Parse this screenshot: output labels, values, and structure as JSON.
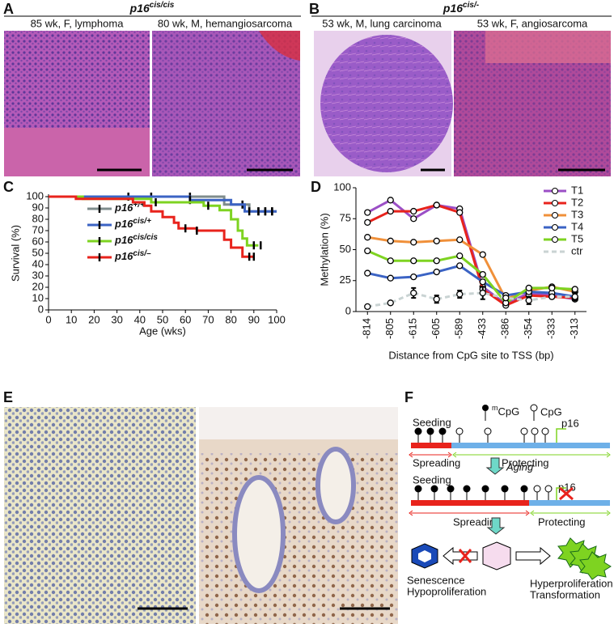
{
  "panels": {
    "A": {
      "label": "A",
      "title": {
        "text": "p16",
        "sup": "cis/cis"
      },
      "images": [
        "85 wk, F, lymphoma",
        "80 wk, M, hemangiosarcoma"
      ]
    },
    "B": {
      "label": "B",
      "title": {
        "text": "p16",
        "sup": "cis/-"
      },
      "images": [
        "53 wk, M, lung carcinoma",
        "53 wk, F, angiosarcoma"
      ]
    },
    "C": {
      "label": "C"
    },
    "D": {
      "label": "D"
    },
    "E": {
      "label": "E"
    },
    "F": {
      "label": "F"
    }
  },
  "chart_data": [
    {
      "type": "step",
      "xlabel": "Age (wks)",
      "ylabel": "Survival (%)",
      "xlim": [
        0,
        100
      ],
      "xticks": [
        0,
        10,
        20,
        30,
        40,
        50,
        60,
        70,
        80,
        90,
        100
      ],
      "ylim": [
        0,
        100
      ],
      "yticks": [
        0,
        10,
        20,
        30,
        40,
        50,
        60,
        70,
        80,
        90,
        100
      ],
      "series": [
        {
          "name": "p16+/+",
          "color": "#7f8c8c",
          "x": [
            0,
            77,
            77,
            88,
            88,
            100
          ],
          "values": [
            100,
            100,
            93,
            93,
            87,
            87
          ],
          "censored": [
            35,
            45,
            62,
            85,
            92,
            95,
            98
          ]
        },
        {
          "name": "p16cis/+",
          "color": "#3b63c4",
          "x": [
            0,
            62,
            62,
            80,
            80,
            86,
            86,
            100
          ],
          "values": [
            100,
            100,
            97,
            97,
            93,
            93,
            87,
            87
          ],
          "censored": [
            62,
            88,
            92,
            95,
            98
          ]
        },
        {
          "name": "p16cis/cis",
          "color": "#7ed321",
          "x": [
            0,
            15,
            15,
            45,
            45,
            68,
            68,
            75,
            75,
            80,
            80,
            83,
            83,
            85,
            85,
            87,
            87,
            92
          ],
          "values": [
            100,
            100,
            98,
            98,
            95,
            95,
            92,
            92,
            88,
            88,
            80,
            80,
            70,
            70,
            63,
            63,
            57,
            57
          ],
          "censored": [
            47,
            70,
            90,
            93
          ]
        },
        {
          "name": "p16cis/–",
          "color": "#e8231c",
          "x": [
            0,
            12,
            12,
            37,
            37,
            42,
            42,
            45,
            45,
            50,
            50,
            55,
            55,
            57,
            57,
            65,
            65,
            77,
            77,
            80,
            80,
            85,
            85,
            90
          ],
          "values": [
            100,
            100,
            98,
            98,
            95,
            95,
            92,
            92,
            87,
            87,
            82,
            82,
            77,
            77,
            72,
            72,
            70,
            70,
            62,
            62,
            55,
            55,
            47,
            47
          ],
          "censored": [
            60,
            65,
            88,
            90
          ]
        }
      ]
    },
    {
      "type": "line",
      "xlabel": "Distance from CpG site to TSS (bp)",
      "ylabel": "Methylation (%)",
      "categories": [
        "-814",
        "-805",
        "-615",
        "-605",
        "-589",
        "-433",
        "-386",
        "-354",
        "-333",
        "-313"
      ],
      "ylim": [
        0,
        100
      ],
      "yticks": [
        0,
        25,
        50,
        75,
        100
      ],
      "series": [
        {
          "name": "T1",
          "color": "#9b4fc6",
          "values": [
            80,
            90,
            75,
            86,
            83,
            20,
            6,
            15,
            13,
            10
          ]
        },
        {
          "name": "T2",
          "color": "#e8231c",
          "values": [
            72,
            81,
            81,
            86,
            80,
            18,
            5,
            13,
            12,
            11
          ]
        },
        {
          "name": "T3",
          "color": "#f0903a",
          "values": [
            60,
            57,
            56,
            57,
            58,
            46,
            10,
            17,
            20,
            16
          ]
        },
        {
          "name": "T4",
          "color": "#3b63c4",
          "values": [
            31,
            27,
            28,
            32,
            37,
            24,
            13,
            16,
            15,
            12
          ]
        },
        {
          "name": "T5",
          "color": "#7ed321",
          "values": [
            49,
            41,
            41,
            41,
            45,
            30,
            7,
            19,
            19,
            18
          ]
        },
        {
          "name": "ctr",
          "color": "#c9d3d3",
          "dashed": true,
          "values": [
            4,
            7,
            15,
            10,
            14,
            15,
            11,
            9,
            12,
            12
          ],
          "errors": [
            null,
            null,
            4,
            3,
            3,
            5,
            null,
            3,
            null,
            3
          ]
        }
      ]
    }
  ],
  "diagram": {
    "mcpg": {
      "sup": "m",
      "text": "CpG"
    },
    "cpg": "CpG",
    "seeding1": "Seeding",
    "p16_1": "p16",
    "spreading1": "Spreading",
    "protecting1": "Protecting",
    "aging": "Aging",
    "seeding2": "Seeding",
    "p16_2": "p16",
    "spreading2": "Spreading",
    "protecting2": "Protecting",
    "senescence": "Senescence",
    "hypo": "Hypoproliferation",
    "hyper": "Hyperproliferation",
    "transformation": "Transformation"
  }
}
